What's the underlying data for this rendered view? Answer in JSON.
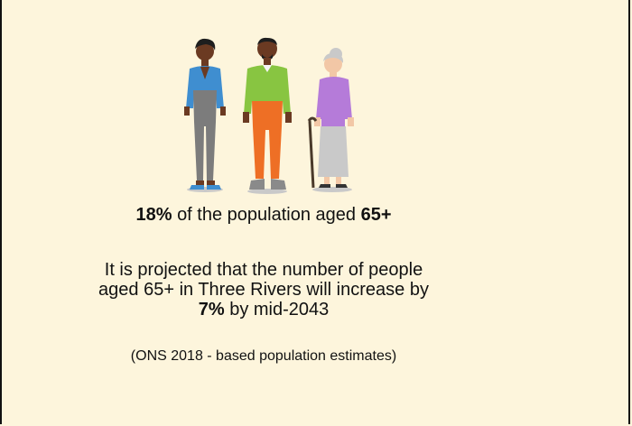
{
  "stat": {
    "value": "18%",
    "text_before_age": "of the population aged",
    "age": "65+"
  },
  "projection": {
    "line1": "It is projected that the number of people",
    "line2": "aged 65+ in Three Rivers will increase by",
    "percent": "7%",
    "suffix": "by mid-2043"
  },
  "source": "(ONS 2018 - based population estimates)",
  "illustration": {
    "icons": [
      "young-woman-icon",
      "young-man-icon",
      "elderly-woman-with-cane-icon"
    ],
    "colors": {
      "background": "#fdf5dc",
      "woman_top": "#3f8ed0",
      "woman_pants": "#7c7c7c",
      "man_top": "#88c541",
      "man_pants": "#ee6f25",
      "elder_top": "#b57bd9",
      "elder_skirt": "#c9c9c9",
      "skin_dark": "#6b3a22",
      "skin_light": "#f2c7a6"
    }
  }
}
